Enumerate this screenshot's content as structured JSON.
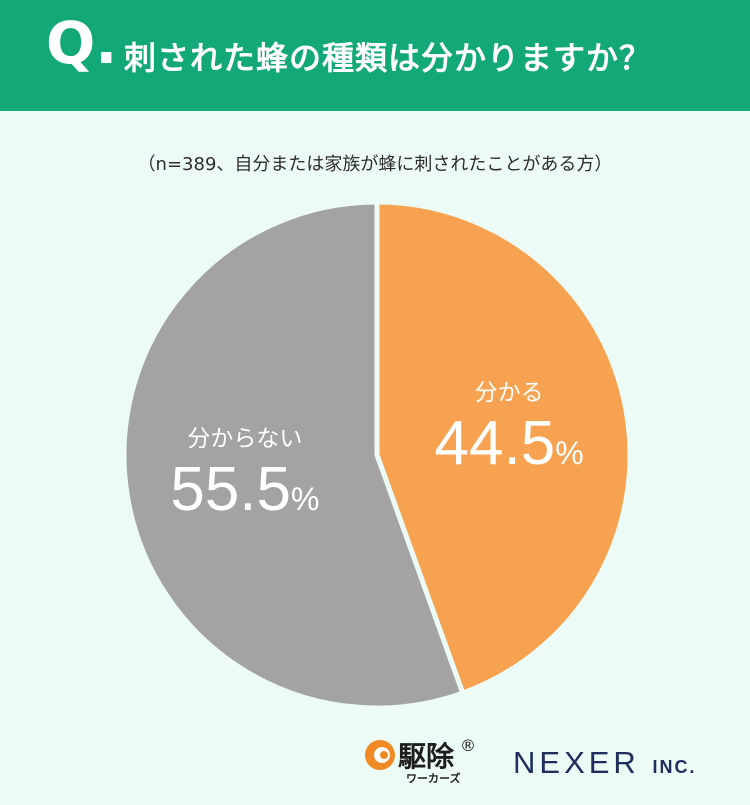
{
  "header": {
    "q_label": "Q.",
    "title": "刺された蜂の種類は分かりますか？"
  },
  "note": "（n=389、自分または家族が蜂に刺されたことがある方）",
  "chart_data": {
    "type": "pie",
    "title": "刺された蜂の種類は分かりますか？",
    "categories": [
      "分かる",
      "分からない"
    ],
    "values": [
      44.5,
      55.5
    ],
    "unit": "%",
    "colors": [
      "#f7a250",
      "#a3a3a3"
    ],
    "start": "12 o'clock, clockwise"
  },
  "footer": {
    "logo_text": "駆除",
    "logo_sub": "ワーカーズ",
    "logo_mark": "®",
    "company": "NEXER",
    "company_suffix": "INC."
  }
}
